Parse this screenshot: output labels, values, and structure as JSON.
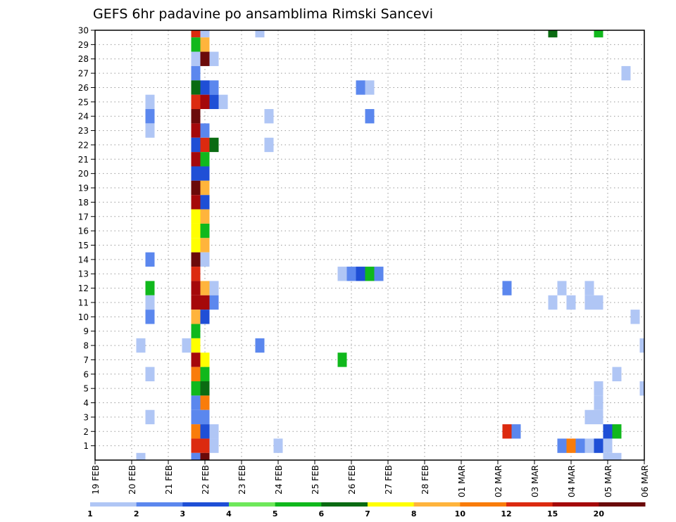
{
  "chart_data": {
    "type": "heatmap",
    "title": "GEFS 6hr padavine po ansamblima Rimski Sancevi",
    "xlabel": "",
    "ylabel": "",
    "x_tick_labels": [
      "19 FEB",
      "20 FEB",
      "21 FEB",
      "22 FEB",
      "23 FEB",
      "24 FEB",
      "25 FEB",
      "26 FEB",
      "27 FEB",
      "28 FEB",
      "01 MAR",
      "02 MAR",
      "03 MAR",
      "04 MAR",
      "05 MAR",
      "06 MAR"
    ],
    "x_range": [
      "19 FEB 00Z",
      "06 MAR 00Z"
    ],
    "x_step": "6hr",
    "y_tick_labels": [
      1,
      2,
      3,
      4,
      5,
      6,
      7,
      8,
      9,
      10,
      11,
      12,
      13,
      14,
      15,
      16,
      17,
      18,
      19,
      20,
      21,
      22,
      23,
      24,
      25,
      26,
      27,
      28,
      29,
      30
    ],
    "y_range": [
      0,
      30
    ],
    "grid": true,
    "colorbar": {
      "labels": [
        "1",
        "2",
        "3",
        "4",
        "5",
        "6",
        "7",
        "8",
        "10",
        "12",
        "15",
        "20"
      ],
      "colors": [
        "#b0c6f5",
        "#5b87ee",
        "#1f4fd6",
        "#6ee85a",
        "#10b81c",
        "#0a6b12",
        "#ffff00",
        "#ffb43c",
        "#f97c0a",
        "#dc2a0f",
        "#a5080a",
        "#6b0a0a"
      ]
    },
    "cells": [
      {
        "m": 30,
        "t": "21 FEB 18Z",
        "v": 12
      },
      {
        "m": 30,
        "t": "22 FEB 00Z",
        "v": 1
      },
      {
        "m": 30,
        "t": "23 FEB 12Z",
        "v": 1
      },
      {
        "m": 30,
        "t": "03 MAR 12Z",
        "v": 6
      },
      {
        "m": 30,
        "t": "04 MAR 18Z",
        "v": 5
      },
      {
        "m": 29,
        "t": "21 FEB 18Z",
        "v": 5
      },
      {
        "m": 29,
        "t": "22 FEB 00Z",
        "v": 8
      },
      {
        "m": 28,
        "t": "21 FEB 18Z",
        "v": 1
      },
      {
        "m": 28,
        "t": "22 FEB 00Z",
        "v": 20
      },
      {
        "m": 28,
        "t": "22 FEB 06Z",
        "v": 1
      },
      {
        "m": 27,
        "t": "21 FEB 18Z",
        "v": 2
      },
      {
        "m": 27,
        "t": "05 MAR 12Z",
        "v": 1
      },
      {
        "m": 26,
        "t": "21 FEB 18Z",
        "v": 6
      },
      {
        "m": 26,
        "t": "22 FEB 00Z",
        "v": 3
      },
      {
        "m": 26,
        "t": "22 FEB 06Z",
        "v": 2
      },
      {
        "m": 26,
        "t": "26 FEB 06Z",
        "v": 2
      },
      {
        "m": 26,
        "t": "26 FEB 12Z",
        "v": 1
      },
      {
        "m": 25,
        "t": "20 FEB 12Z",
        "v": 1
      },
      {
        "m": 25,
        "t": "21 FEB 18Z",
        "v": 12
      },
      {
        "m": 25,
        "t": "22 FEB 00Z",
        "v": 15
      },
      {
        "m": 25,
        "t": "22 FEB 06Z",
        "v": 3
      },
      {
        "m": 25,
        "t": "22 FEB 12Z",
        "v": 1
      },
      {
        "m": 24,
        "t": "20 FEB 12Z",
        "v": 2
      },
      {
        "m": 24,
        "t": "21 FEB 18Z",
        "v": 20
      },
      {
        "m": 24,
        "t": "23 FEB 18Z",
        "v": 1
      },
      {
        "m": 24,
        "t": "26 FEB 12Z",
        "v": 2
      },
      {
        "m": 23,
        "t": "20 FEB 12Z",
        "v": 1
      },
      {
        "m": 23,
        "t": "21 FEB 18Z",
        "v": 15
      },
      {
        "m": 23,
        "t": "22 FEB 00Z",
        "v": 2
      },
      {
        "m": 22,
        "t": "21 FEB 18Z",
        "v": 3
      },
      {
        "m": 22,
        "t": "22 FEB 00Z",
        "v": 12
      },
      {
        "m": 22,
        "t": "22 FEB 06Z",
        "v": 6
      },
      {
        "m": 22,
        "t": "23 FEB 18Z",
        "v": 1
      },
      {
        "m": 21,
        "t": "21 FEB 18Z",
        "v": 17
      },
      {
        "m": 21,
        "t": "22 FEB 00Z",
        "v": 5
      },
      {
        "m": 20,
        "t": "21 FEB 18Z",
        "v": 3
      },
      {
        "m": 20,
        "t": "22 FEB 00Z",
        "v": 3
      },
      {
        "m": 19,
        "t": "21 FEB 18Z",
        "v": 20
      },
      {
        "m": 19,
        "t": "22 FEB 00Z",
        "v": 8
      },
      {
        "m": 18,
        "t": "21 FEB 18Z",
        "v": 17
      },
      {
        "m": 18,
        "t": "22 FEB 00Z",
        "v": 3
      },
      {
        "m": 17,
        "t": "21 FEB 18Z",
        "v": 7
      },
      {
        "m": 17,
        "t": "22 FEB 00Z",
        "v": 8
      },
      {
        "m": 16,
        "t": "21 FEB 18Z",
        "v": 7
      },
      {
        "m": 16,
        "t": "22 FEB 00Z",
        "v": 5
      },
      {
        "m": 15,
        "t": "21 FEB 18Z",
        "v": 7
      },
      {
        "m": 15,
        "t": "22 FEB 00Z",
        "v": 8
      },
      {
        "m": 14,
        "t": "20 FEB 12Z",
        "v": 2
      },
      {
        "m": 14,
        "t": "21 FEB 18Z",
        "v": 20
      },
      {
        "m": 14,
        "t": "22 FEB 00Z",
        "v": 1
      },
      {
        "m": 13,
        "t": "21 FEB 18Z",
        "v": 12
      },
      {
        "m": 13,
        "t": "25 FEB 18Z",
        "v": 1
      },
      {
        "m": 13,
        "t": "26 FEB 00Z",
        "v": 2
      },
      {
        "m": 13,
        "t": "26 FEB 06Z",
        "v": 3
      },
      {
        "m": 13,
        "t": "26 FEB 12Z",
        "v": 5
      },
      {
        "m": 13,
        "t": "26 FEB 18Z",
        "v": 2
      },
      {
        "m": 12,
        "t": "20 FEB 12Z",
        "v": 5
      },
      {
        "m": 12,
        "t": "21 FEB 18Z",
        "v": 17
      },
      {
        "m": 12,
        "t": "22 FEB 00Z",
        "v": 8
      },
      {
        "m": 12,
        "t": "22 FEB 06Z",
        "v": 1
      },
      {
        "m": 12,
        "t": "02 MAR 06Z",
        "v": 2
      },
      {
        "m": 12,
        "t": "03 MAR 18Z",
        "v": 1
      },
      {
        "m": 12,
        "t": "04 MAR 12Z",
        "v": 1
      },
      {
        "m": 11,
        "t": "20 FEB 12Z",
        "v": 1
      },
      {
        "m": 11,
        "t": "21 FEB 18Z",
        "v": 15
      },
      {
        "m": 11,
        "t": "22 FEB 00Z",
        "v": 17
      },
      {
        "m": 11,
        "t": "22 FEB 06Z",
        "v": 2
      },
      {
        "m": 11,
        "t": "03 MAR 12Z",
        "v": 1
      },
      {
        "m": 11,
        "t": "04 MAR 00Z",
        "v": 1
      },
      {
        "m": 11,
        "t": "04 MAR 12Z",
        "v": 1
      },
      {
        "m": 11,
        "t": "04 MAR 18Z",
        "v": 1
      },
      {
        "m": 10,
        "t": "20 FEB 12Z",
        "v": 2
      },
      {
        "m": 10,
        "t": "21 FEB 18Z",
        "v": 8
      },
      {
        "m": 10,
        "t": "22 FEB 00Z",
        "v": 3
      },
      {
        "m": 10,
        "t": "05 MAR 18Z",
        "v": 1
      },
      {
        "m": 9,
        "t": "21 FEB 18Z",
        "v": 5
      },
      {
        "m": 8,
        "t": "20 FEB 06Z",
        "v": 1
      },
      {
        "m": 8,
        "t": "21 FEB 12Z",
        "v": 1
      },
      {
        "m": 8,
        "t": "21 FEB 18Z",
        "v": 7
      },
      {
        "m": 8,
        "t": "23 FEB 12Z",
        "v": 2
      },
      {
        "m": 8,
        "t": "06 MAR 00Z",
        "v": 1
      },
      {
        "m": 7,
        "t": "21 FEB 18Z",
        "v": 17
      },
      {
        "m": 7,
        "t": "22 FEB 00Z",
        "v": 7
      },
      {
        "m": 7,
        "t": "25 FEB 18Z",
        "v": 5
      },
      {
        "m": 6,
        "t": "20 FEB 12Z",
        "v": 1
      },
      {
        "m": 6,
        "t": "21 FEB 18Z",
        "v": 10
      },
      {
        "m": 6,
        "t": "22 FEB 00Z",
        "v": 5
      },
      {
        "m": 6,
        "t": "05 MAR 06Z",
        "v": 1
      },
      {
        "m": 5,
        "t": "21 FEB 18Z",
        "v": 5
      },
      {
        "m": 5,
        "t": "22 FEB 00Z",
        "v": 6
      },
      {
        "m": 5,
        "t": "04 MAR 18Z",
        "v": 1
      },
      {
        "m": 5,
        "t": "06 MAR 00Z",
        "v": 1
      },
      {
        "m": 4,
        "t": "21 FEB 18Z",
        "v": 2
      },
      {
        "m": 4,
        "t": "22 FEB 00Z",
        "v": 10
      },
      {
        "m": 4,
        "t": "04 MAR 18Z",
        "v": 1
      },
      {
        "m": 3,
        "t": "20 FEB 12Z",
        "v": 1
      },
      {
        "m": 3,
        "t": "21 FEB 18Z",
        "v": 2
      },
      {
        "m": 3,
        "t": "22 FEB 00Z",
        "v": 2
      },
      {
        "m": 3,
        "t": "04 MAR 12Z",
        "v": 1
      },
      {
        "m": 3,
        "t": "04 MAR 18Z",
        "v": 1
      },
      {
        "m": 2,
        "t": "21 FEB 18Z",
        "v": 10
      },
      {
        "m": 2,
        "t": "22 FEB 00Z",
        "v": 3
      },
      {
        "m": 2,
        "t": "22 FEB 06Z",
        "v": 1
      },
      {
        "m": 2,
        "t": "02 MAR 06Z",
        "v": 12
      },
      {
        "m": 2,
        "t": "02 MAR 12Z",
        "v": 2
      },
      {
        "m": 2,
        "t": "05 MAR 00Z",
        "v": 3
      },
      {
        "m": 2,
        "t": "05 MAR 06Z",
        "v": 5
      },
      {
        "m": 1,
        "t": "21 FEB 18Z",
        "v": 12
      },
      {
        "m": 1,
        "t": "22 FEB 00Z",
        "v": 12
      },
      {
        "m": 1,
        "t": "22 FEB 06Z",
        "v": 1
      },
      {
        "m": 1,
        "t": "24 FEB 00Z",
        "v": 1
      },
      {
        "m": 1,
        "t": "03 MAR 18Z",
        "v": 2
      },
      {
        "m": 1,
        "t": "04 MAR 00Z",
        "v": 10
      },
      {
        "m": 1,
        "t": "04 MAR 06Z",
        "v": 2
      },
      {
        "m": 1,
        "t": "04 MAR 12Z",
        "v": 1
      },
      {
        "m": 1,
        "t": "04 MAR 18Z",
        "v": 3
      },
      {
        "m": 1,
        "t": "05 MAR 00Z",
        "v": 1
      },
      {
        "m": 0,
        "t": "20 FEB 06Z",
        "v": 1
      },
      {
        "m": 0,
        "t": "21 FEB 18Z",
        "v": 2
      },
      {
        "m": 0,
        "t": "22 FEB 00Z",
        "v": 20
      },
      {
        "m": 0,
        "t": "05 MAR 00Z",
        "v": 1
      },
      {
        "m": 0,
        "t": "05 MAR 06Z",
        "v": 1
      }
    ]
  }
}
